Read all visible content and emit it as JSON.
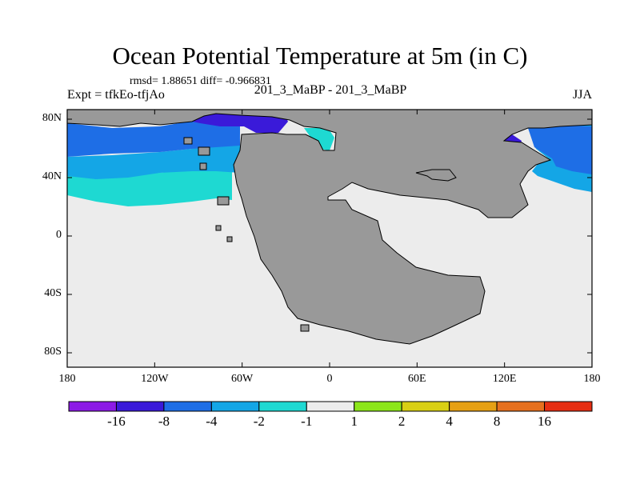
{
  "title": "Ocean Potential Temperature at 5m (in C)",
  "stats": "rmsd= 1.88651 diff= -0.966831",
  "left_label": "Expt = tfkEo-tfjAo",
  "center_label": "201_3_MaBP - 201_3_MaBP",
  "right_label": "JJA",
  "lat_ticks": [
    {
      "value": 80,
      "label": "80N"
    },
    {
      "value": 40,
      "label": "40N"
    },
    {
      "value": 0,
      "label": "0"
    },
    {
      "value": -40,
      "label": "40S"
    },
    {
      "value": -80,
      "label": "80S"
    }
  ],
  "lon_ticks": [
    {
      "value": 0,
      "label": "180"
    },
    {
      "value": 60,
      "label": "120W"
    },
    {
      "value": 120,
      "label": "60W"
    },
    {
      "value": 180,
      "label": "0"
    },
    {
      "value": 240,
      "label": "60E"
    },
    {
      "value": 300,
      "label": "120E"
    },
    {
      "value": 360,
      "label": "180"
    }
  ],
  "colorbar": {
    "labels": [
      "-16",
      "-8",
      "-4",
      "-2",
      "-1",
      "1",
      "2",
      "4",
      "8",
      "16"
    ],
    "colors": [
      "#8c1ae6",
      "#3a1ad9",
      "#1e6ee6",
      "#14a6e6",
      "#1ed9d2",
      "#ececec",
      "#8ce61a",
      "#d9cf14",
      "#e6a014",
      "#e6701e",
      "#e62e12"
    ]
  },
  "map_colors": {
    "land": "#999999",
    "ocean_neutral": "#ececec",
    "cyan": "#1ed9d2",
    "light_blue": "#14a6e6",
    "blue": "#1e6ee6",
    "dark_blue": "#3a1ad9"
  }
}
